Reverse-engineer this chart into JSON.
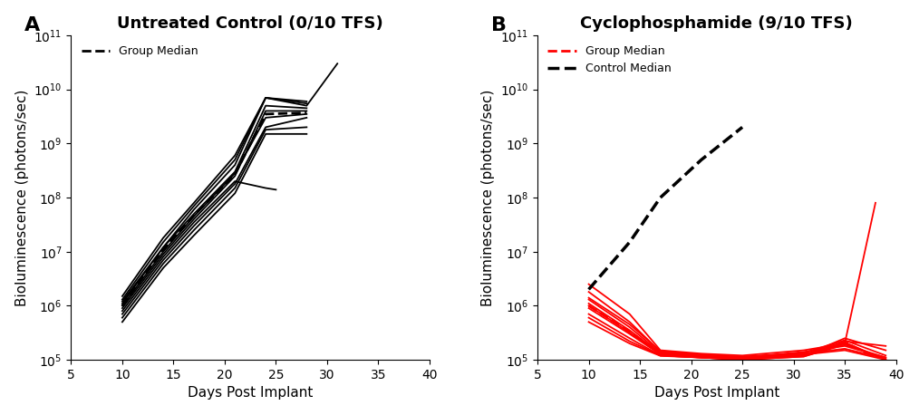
{
  "title_A": "Untreated Control (0/10 TFS)",
  "title_B": "Cyclophosphamide (9/10 TFS)",
  "xlabel": "Days Post Implant",
  "ylabel": "Bioluminescence (photons/sec)",
  "label_A": "A",
  "label_B": "B",
  "xlim": [
    5,
    40
  ],
  "ylim_log": [
    5,
    11
  ],
  "xticks": [
    5,
    10,
    15,
    20,
    25,
    30,
    35,
    40
  ],
  "legend_group_median_A": "Group Median",
  "legend_group_median_B": "Group Median",
  "legend_control_median_B": "Control Median",
  "untreated_individuals": [
    {
      "x": [
        10,
        14,
        17,
        21,
        24,
        28,
        31
      ],
      "y": [
        1200000.0,
        12000000.0,
        60000000.0,
        400000000.0,
        7000000000.0,
        5000000000.0,
        30000000000.0
      ]
    },
    {
      "x": [
        10,
        14,
        17,
        21,
        24,
        28
      ],
      "y": [
        1300000.0,
        15000000.0,
        70000000.0,
        500000000.0,
        7000000000.0,
        5500000000.0
      ]
    },
    {
      "x": [
        10,
        14,
        17,
        21,
        24,
        28
      ],
      "y": [
        1100000.0,
        12000000.0,
        50000000.0,
        300000000.0,
        5000000000.0,
        4500000000.0
      ]
    },
    {
      "x": [
        10,
        14,
        17,
        21,
        24,
        28
      ],
      "y": [
        900000.0,
        9000000.0,
        40000000.0,
        250000000.0,
        4000000000.0,
        4000000000.0
      ]
    },
    {
      "x": [
        10,
        14,
        17,
        21,
        24,
        25
      ],
      "y": [
        800000.0,
        8000000.0,
        35000000.0,
        200000000.0,
        150000000.0,
        140000000.0
      ]
    },
    {
      "x": [
        10,
        14,
        17,
        21,
        24,
        28
      ],
      "y": [
        700000.0,
        7000000.0,
        30000000.0,
        180000000.0,
        2000000000.0,
        3000000000.0
      ]
    },
    {
      "x": [
        10,
        14,
        17,
        21,
        24,
        28
      ],
      "y": [
        600000.0,
        6000000.0,
        25000000.0,
        150000000.0,
        1800000000.0,
        2000000000.0
      ]
    },
    {
      "x": [
        10,
        14,
        17,
        21,
        24,
        28
      ],
      "y": [
        500000.0,
        5000000.0,
        20000000.0,
        120000000.0,
        1500000000.0,
        1500000000.0
      ]
    },
    {
      "x": [
        10,
        14,
        17,
        21,
        24,
        28
      ],
      "y": [
        1500000.0,
        18000000.0,
        80000000.0,
        600000000.0,
        7000000000.0,
        6000000000.0
      ]
    },
    {
      "x": [
        10,
        14,
        17,
        21,
        24,
        28
      ],
      "y": [
        1000000.0,
        10000000.0,
        45000000.0,
        280000000.0,
        3000000000.0,
        3500000000.0
      ]
    }
  ],
  "untreated_median": {
    "x": [
      10,
      14,
      17,
      21,
      24,
      28
    ],
    "y": [
      1000000.0,
      11000000.0,
      47000000.0,
      270000000.0,
      3500000000.0,
      3700000000.0
    ]
  },
  "treated_individuals": [
    {
      "x": [
        10,
        14,
        17,
        21,
        25,
        31,
        35,
        38
      ],
      "y": [
        2500000.0,
        700000.0,
        150000.0,
        130000.0,
        120000.0,
        150000.0,
        200000.0,
        120000.0
      ]
    },
    {
      "x": [
        10,
        14,
        17,
        21,
        25,
        31,
        35,
        39
      ],
      "y": [
        1800000.0,
        500000.0,
        140000.0,
        120000.0,
        110000.0,
        140000.0,
        180000.0,
        110000.0
      ]
    },
    {
      "x": [
        10,
        14,
        17,
        21,
        25,
        31,
        35,
        39
      ],
      "y": [
        1300000.0,
        400000.0,
        135000.0,
        120000.0,
        115000.0,
        130000.0,
        160000.0,
        105000.0
      ]
    },
    {
      "x": [
        10,
        14,
        17,
        21,
        25,
        31,
        35,
        39
      ],
      "y": [
        1100000.0,
        350000.0,
        130000.0,
        115000.0,
        110000.0,
        125000.0,
        150000.0,
        100000.0
      ]
    },
    {
      "x": [
        10,
        14,
        17,
        21,
        25,
        31,
        35,
        39
      ],
      "y": [
        900000.0,
        300000.0,
        125000.0,
        110000.0,
        105000.0,
        120000.0,
        250000.0,
        150000.0
      ]
    },
    {
      "x": [
        10,
        14,
        17,
        21,
        25,
        31,
        35,
        39
      ],
      "y": [
        700000.0,
        250000.0,
        120000.0,
        110000.0,
        100000.0,
        120000.0,
        220000.0,
        180000.0
      ]
    },
    {
      "x": [
        10,
        14,
        17,
        21,
        25,
        31,
        35,
        38
      ],
      "y": [
        600000.0,
        220000.0,
        120000.0,
        110000.0,
        100000.0,
        115000.0,
        200000.0,
        80000000.0
      ]
    },
    {
      "x": [
        10,
        14,
        17,
        21,
        25,
        31,
        35,
        39
      ],
      "y": [
        500000.0,
        200000.0,
        118000.0,
        110000.0,
        100000.0,
        115000.0,
        190000.0,
        110000.0
      ]
    },
    {
      "x": [
        10,
        14,
        17,
        21,
        25,
        31,
        35,
        39
      ],
      "y": [
        1400000.0,
        450000.0,
        145000.0,
        125000.0,
        112000.0,
        135000.0,
        230000.0,
        120000.0
      ]
    },
    {
      "x": [
        10,
        14,
        17,
        21,
        25,
        31,
        35,
        39
      ],
      "y": [
        1000000.0,
        320000.0,
        128000.0,
        112000.0,
        102000.0,
        122000.0,
        210000.0,
        100000.0
      ]
    }
  ],
  "treated_median": {
    "x": [
      10,
      14,
      17,
      21,
      25,
      31,
      35,
      38
    ],
    "y": [
      1000000.0,
      330000.0,
      130000.0,
      115000.0,
      107000.0,
      125000.0,
      210000.0,
      110000.0
    ]
  },
  "control_median_in_B": {
    "x": [
      10,
      14,
      17,
      21,
      25
    ],
    "y": [
      2000000.0,
      15000000.0,
      100000000.0,
      500000000.0,
      2000000000.0
    ]
  },
  "color_untreated": "#000000",
  "color_treated": "#ff0000",
  "color_control_median": "#000000",
  "lw_individual": 1.3,
  "lw_median": 2.0,
  "lw_control_median": 2.5,
  "title_fontsize": 13,
  "label_fontsize": 11,
  "tick_fontsize": 10
}
